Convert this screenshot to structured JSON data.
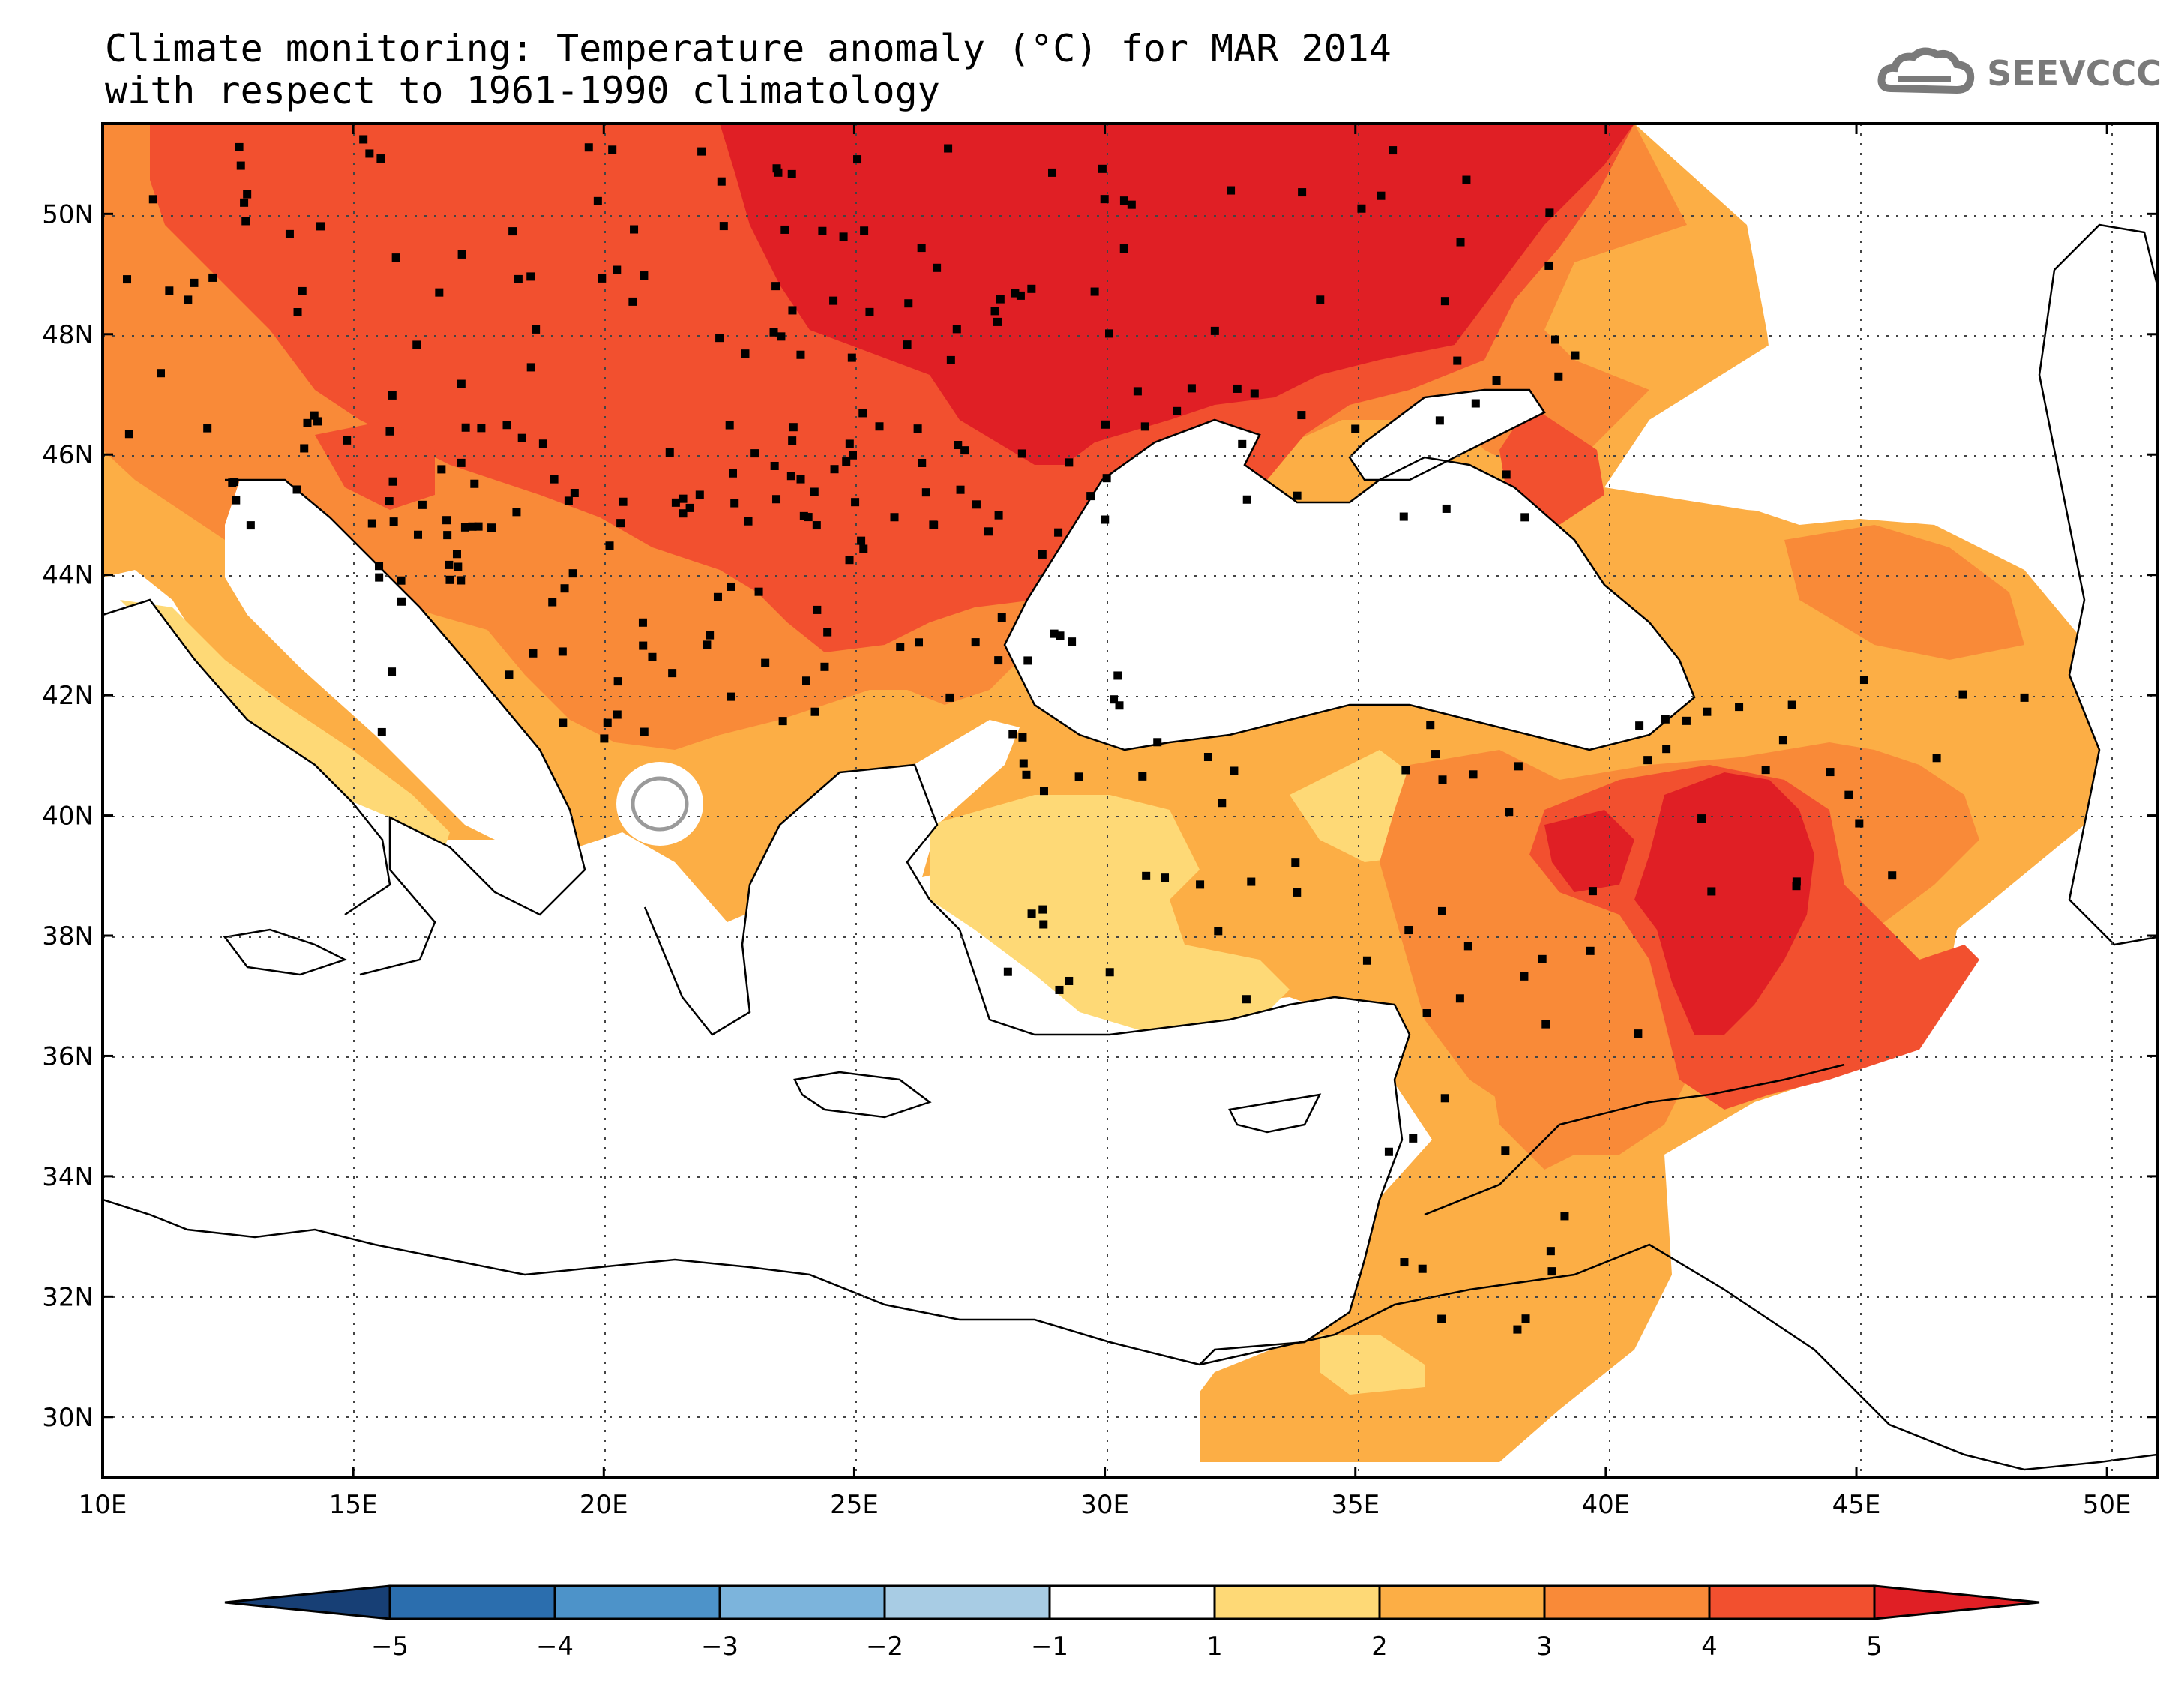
{
  "title": {
    "line1": "Climate monitoring: Temperature anomaly (°C) for MAR 2014",
    "line2": "with respect to 1961-1990 climatology"
  },
  "logo": {
    "text": "SEEVCCC",
    "icon": "cloud-icon"
  },
  "map": {
    "lon_labels": [
      "10E",
      "15E",
      "20E",
      "25E",
      "30E",
      "35E",
      "40E",
      "45E",
      "50E"
    ],
    "lat_labels": [
      "50N",
      "48N",
      "46N",
      "44N",
      "42N",
      "40N",
      "38N",
      "36N",
      "34N",
      "32N",
      "30N"
    ],
    "lon_range": [
      10,
      51
    ],
    "lat_range": [
      29,
      51.5
    ]
  },
  "colorbar": {
    "labels": [
      "-5",
      "-4",
      "-3",
      "-2",
      "-1",
      "1",
      "2",
      "3",
      "4",
      "5"
    ],
    "colors": [
      "#173f75",
      "#2b6eae",
      "#4d93c9",
      "#7cb4dc",
      "#a8cce4",
      "#ffffff",
      "#fed976",
      "#fcae45",
      "#f98a38",
      "#f2502f",
      "#e01f25"
    ]
  }
}
